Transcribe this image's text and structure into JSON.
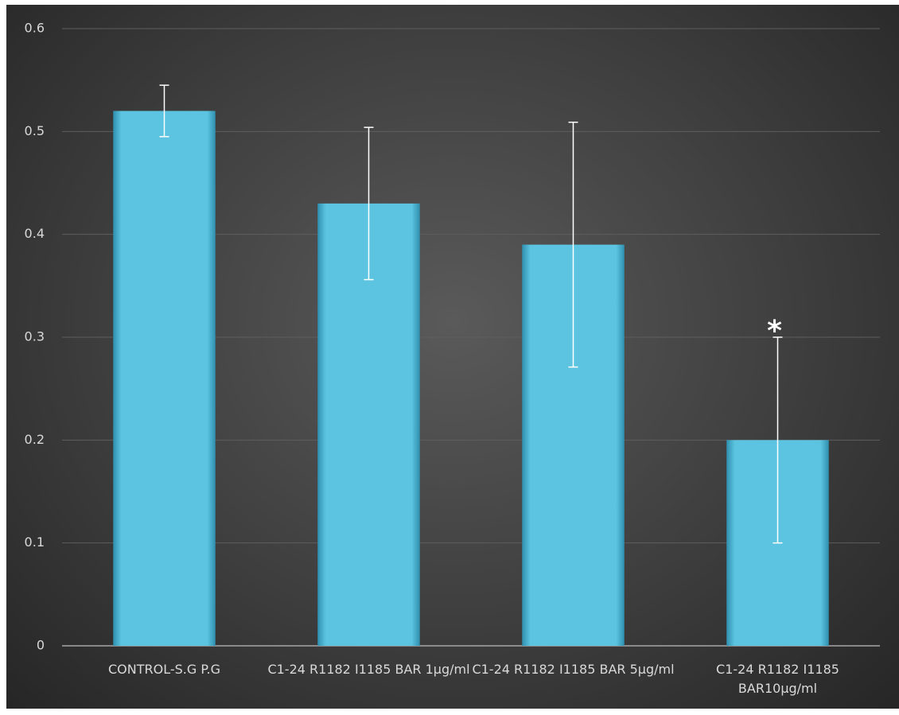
{
  "chart_data": {
    "type": "bar",
    "categories": [
      "CONTROL-S.G P.G",
      "C1-24 R1182 I1185 BAR 1µg/ml",
      "C1-24 R1182 I1185 BAR 5µg/ml",
      "C1-24 R1182 I1185 BAR10µg/ml"
    ],
    "values": [
      0.52,
      0.43,
      0.39,
      0.2
    ],
    "errors": [
      0.025,
      0.074,
      0.119,
      0.1
    ],
    "color": "#4ab6d6",
    "annotation": "*",
    "ylim": [
      0,
      0.6
    ],
    "yticks": [
      0,
      0.1,
      0.2,
      0.3,
      0.4,
      0.5,
      0.6
    ],
    "grid": true
  }
}
